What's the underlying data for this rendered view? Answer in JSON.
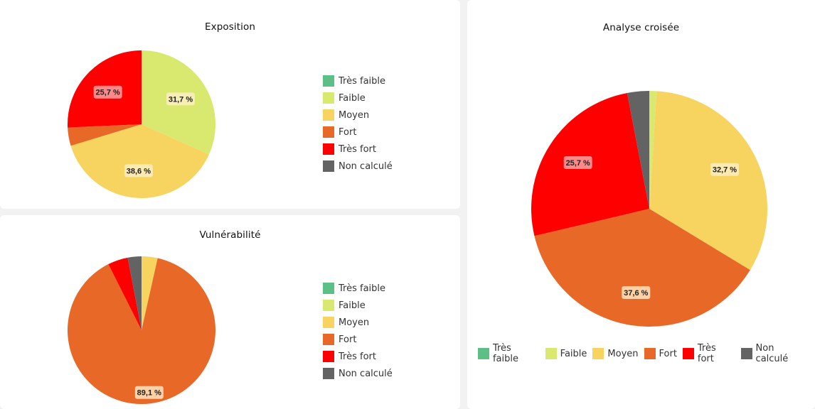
{
  "legend_labels": [
    "Très faible",
    "Faible",
    "Moyen",
    "Fort",
    "Très fort",
    "Non calculé"
  ],
  "colors": {
    "tres_faible": "#5cbf86",
    "faible": "#d9e96f",
    "moyen": "#f7d45f",
    "fort": "#e76827",
    "tres_fort": "#ff0000",
    "non_calcule": "#636363"
  },
  "chart_data": [
    {
      "type": "pie",
      "title": "Exposition",
      "categories": [
        "Très faible",
        "Faible",
        "Moyen",
        "Fort",
        "Très fort",
        "Non calculé"
      ],
      "values": [
        0,
        31.7,
        38.6,
        4.0,
        25.7,
        0
      ],
      "data_labels": [
        "",
        "31,7 %",
        "38,6 %",
        "",
        "25,7 %",
        ""
      ],
      "legend_position": "right"
    },
    {
      "type": "pie",
      "title": "Vulnérabilité",
      "categories": [
        "Très faible",
        "Faible",
        "Moyen",
        "Fort",
        "Très fort",
        "Non calculé"
      ],
      "values": [
        0,
        0,
        3.5,
        89.1,
        4.4,
        3.0
      ],
      "data_labels": [
        "",
        "",
        "",
        "89,1 %",
        "",
        ""
      ],
      "legend_position": "right"
    },
    {
      "type": "pie",
      "title": "Analyse croisée",
      "categories": [
        "Très faible",
        "Faible",
        "Moyen",
        "Fort",
        "Très fort",
        "Non calculé"
      ],
      "values": [
        0,
        1.0,
        32.7,
        37.6,
        25.7,
        3.0
      ],
      "data_labels": [
        "",
        "",
        "32,7 %",
        "37,6 %",
        "25,7 %",
        ""
      ],
      "legend_position": "bottom"
    }
  ]
}
